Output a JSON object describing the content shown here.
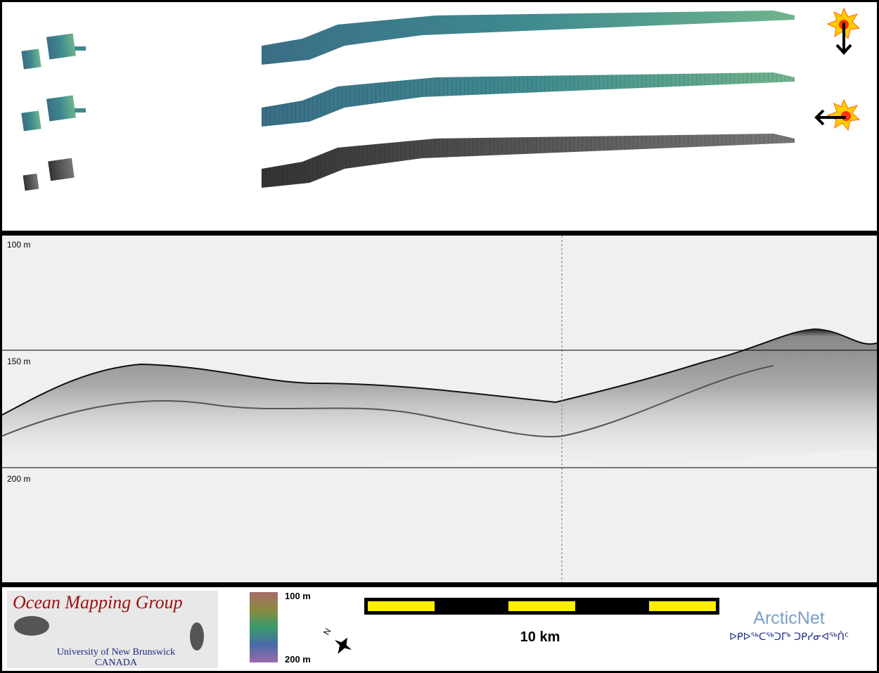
{
  "profile": {
    "depth_labels": [
      "100 m",
      "150 m",
      "200 m"
    ]
  },
  "logo": {
    "title": "Ocean Mapping Group",
    "university": "University of New Brunswick",
    "country": "CANADA"
  },
  "colorbar": {
    "top": "100 m",
    "bottom": "200 m"
  },
  "compass": {
    "label": "N"
  },
  "scale_bar": {
    "label": "10 km"
  },
  "arcticnet": {
    "name": "ArcticNet",
    "syllabics": "ᐅᑭᐅᖅᑕᖅᑐᒥᒃ ᑐᑭᓯᓂᐊᖅᑏᑦ"
  }
}
